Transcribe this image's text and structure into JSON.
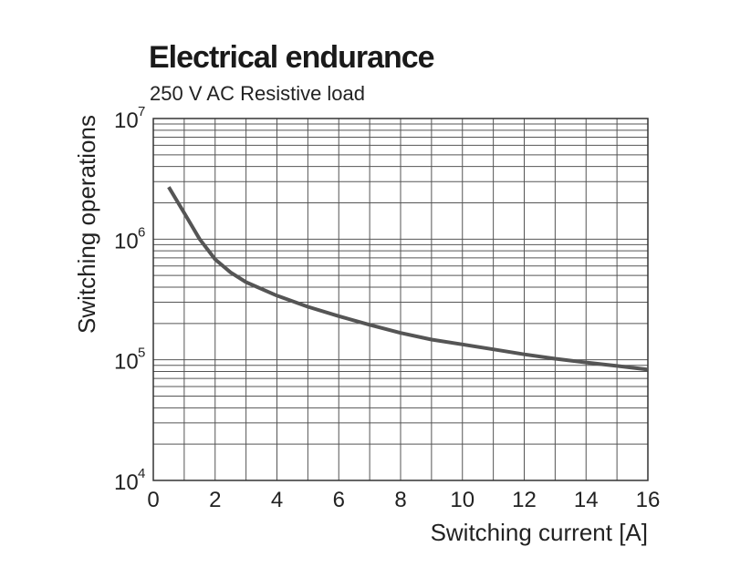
{
  "header": {
    "title": "Electrical endurance",
    "subtitle": "250 V AC Resistive load"
  },
  "chart_data": {
    "type": "line",
    "title": "Electrical endurance",
    "subtitle": "250 V AC Resistive load",
    "xlabel": "Switching current [A]",
    "ylabel": "Switching operations",
    "xlim": [
      0,
      16
    ],
    "ylim": [
      10000,
      10000000
    ],
    "yscale": "log",
    "grid": true,
    "xticks": [
      0,
      2,
      4,
      6,
      8,
      10,
      12,
      14,
      16
    ],
    "xtick_labels": [
      "0",
      "2",
      "4",
      "6",
      "8",
      "10",
      "12",
      "14",
      "16"
    ],
    "yticks": [
      {
        "base": "10",
        "exp": "4",
        "value": 10000
      },
      {
        "base": "10",
        "exp": "5",
        "value": 100000
      },
      {
        "base": "10",
        "exp": "6",
        "value": 1000000
      },
      {
        "base": "10",
        "exp": "7",
        "value": 10000000
      }
    ],
    "series": [
      {
        "name": "250 V AC Resistive load",
        "color": "#555555",
        "x": [
          0.5,
          1.0,
          1.5,
          2.0,
          2.5,
          3.0,
          4.0,
          5.0,
          6.0,
          7.0,
          8.0,
          9.0,
          10.0,
          11.0,
          12.0,
          13.0,
          14.0,
          15.0,
          16.0
        ],
        "y": [
          2700000,
          1650000,
          1000000,
          680000,
          530000,
          440000,
          340000,
          275000,
          230000,
          195000,
          167000,
          147000,
          134000,
          122000,
          111000,
          102000,
          95000,
          89000,
          83000
        ]
      }
    ]
  }
}
